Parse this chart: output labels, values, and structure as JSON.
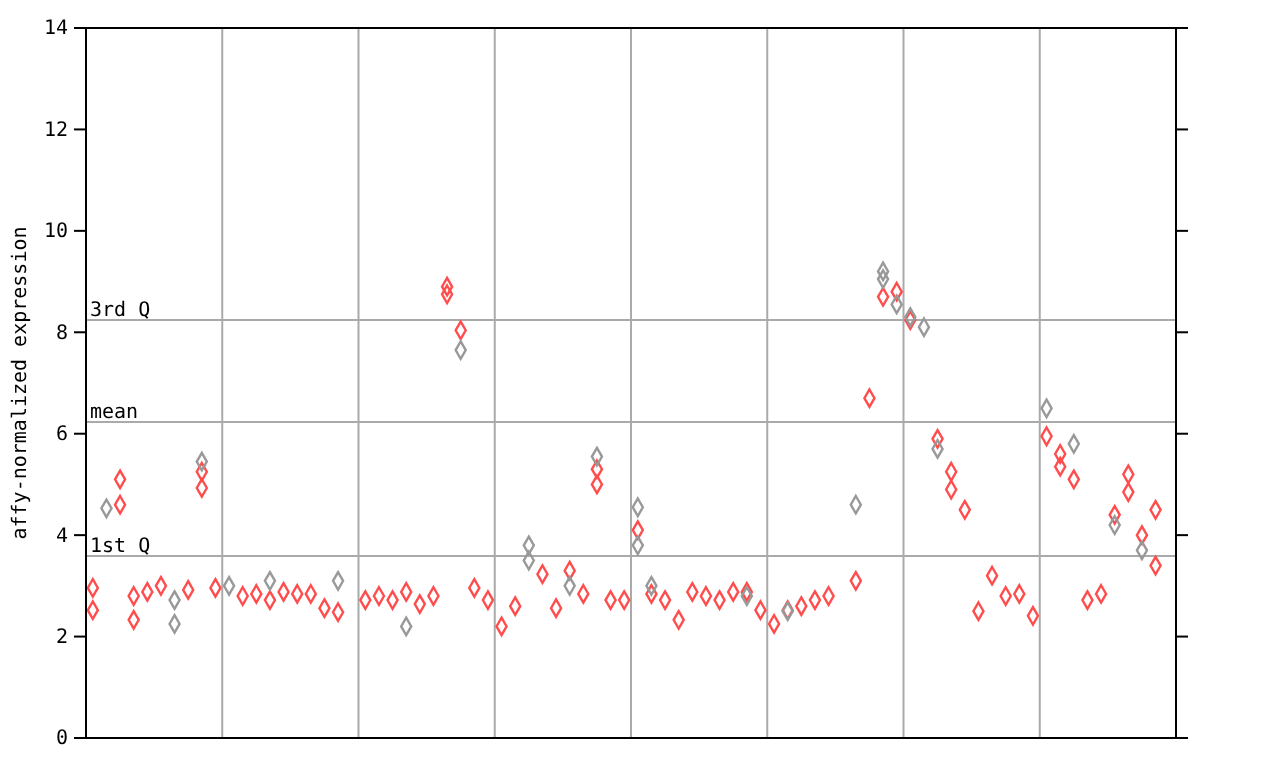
{
  "chart_data": {
    "type": "scatter",
    "ylabel": "affy-normalized expression",
    "categories": [
      null,
      null,
      null,
      null,
      null,
      null,
      null,
      null,
      null,
      null,
      null,
      null,
      null,
      null,
      null,
      null,
      null,
      null,
      null,
      null,
      null,
      null,
      null,
      null,
      null,
      null,
      null,
      null,
      null,
      null,
      null,
      null,
      null,
      null,
      null,
      null,
      null,
      null,
      null,
      null,
      null,
      null,
      null,
      null,
      null,
      null,
      null,
      null,
      null,
      null,
      null,
      null,
      null,
      null,
      null,
      null,
      null,
      null,
      null,
      null,
      null,
      null,
      null,
      null,
      null,
      null,
      null,
      null,
      null,
      null,
      null,
      null,
      null,
      null,
      null,
      null,
      null,
      null,
      null,
      null
    ],
    "ylim": [
      0,
      14
    ],
    "yticks": [
      0,
      2,
      4,
      6,
      8,
      10,
      12,
      14
    ],
    "grid": "x",
    "marker": "diamond",
    "ref_lines": [
      {
        "axis": "y",
        "value": 8.24,
        "label": "3rd Q",
        "color": "#aaaaaa"
      },
      {
        "axis": "y",
        "value": 6.23,
        "label": "mean",
        "color": "#aaaaaa"
      },
      {
        "axis": "y",
        "value": 3.59,
        "label": "1st Q",
        "color": "#aaaaaa"
      }
    ],
    "series": [
      {
        "color": "#ff4d4d",
        "values": [
          2.96,
          null,
          5.1,
          2.8,
          2.88,
          3.0,
          null,
          2.92,
          5.25,
          2.96,
          null,
          2.8,
          2.84,
          2.72,
          2.88,
          2.84,
          2.84,
          2.56,
          2.48,
          null,
          2.72,
          2.8,
          2.72,
          2.88,
          2.64,
          2.8,
          8.9,
          8.04,
          2.96,
          2.72,
          2.2,
          2.6,
          null,
          3.23,
          2.56,
          3.3,
          2.84,
          5.0,
          2.72,
          2.72,
          4.1,
          2.84,
          2.72,
          2.33,
          2.88,
          2.8,
          2.72,
          2.88,
          2.88,
          2.52,
          2.25,
          2.52,
          2.6,
          2.72,
          2.8,
          null,
          3.1,
          6.7,
          8.7,
          8.8,
          8.24,
          null,
          5.9,
          5.25,
          4.5,
          2.5,
          3.2,
          2.8,
          2.84,
          2.41,
          5.95,
          5.6,
          5.1,
          2.72,
          2.84,
          4.4,
          5.2,
          4.0,
          4.5,
          null
        ]
      },
      {
        "color": "#ff4d4d",
        "values": [
          2.52,
          null,
          4.6,
          2.33,
          null,
          null,
          null,
          null,
          4.93,
          null,
          null,
          null,
          null,
          null,
          null,
          null,
          null,
          null,
          null,
          null,
          null,
          null,
          null,
          null,
          null,
          null,
          8.75,
          null,
          null,
          null,
          null,
          null,
          null,
          null,
          null,
          null,
          null,
          5.3,
          null,
          null,
          null,
          null,
          null,
          null,
          null,
          null,
          null,
          null,
          null,
          null,
          null,
          null,
          null,
          null,
          null,
          null,
          null,
          null,
          null,
          null,
          null,
          null,
          null,
          4.9,
          null,
          null,
          null,
          null,
          null,
          null,
          null,
          5.35,
          null,
          null,
          null,
          null,
          4.85,
          null,
          3.4,
          null
        ]
      },
      {
        "color": "#999999",
        "values": [
          null,
          4.53,
          null,
          null,
          null,
          null,
          2.72,
          null,
          5.45,
          null,
          3.0,
          null,
          null,
          3.1,
          null,
          null,
          null,
          null,
          3.1,
          null,
          null,
          null,
          null,
          2.2,
          null,
          null,
          null,
          7.65,
          null,
          null,
          null,
          null,
          3.5,
          null,
          null,
          3.0,
          null,
          5.55,
          null,
          null,
          4.55,
          3.0,
          null,
          null,
          null,
          null,
          null,
          null,
          2.8,
          null,
          null,
          2.5,
          null,
          null,
          null,
          null,
          4.6,
          null,
          9.2,
          8.55,
          8.3,
          8.1,
          5.7,
          null,
          null,
          null,
          null,
          null,
          null,
          null,
          6.5,
          null,
          5.8,
          null,
          null,
          4.2,
          null,
          3.7,
          null,
          null
        ]
      },
      {
        "color": "#999999",
        "values": [
          null,
          null,
          null,
          null,
          null,
          null,
          2.25,
          null,
          null,
          null,
          null,
          null,
          null,
          null,
          null,
          null,
          null,
          null,
          null,
          null,
          null,
          null,
          null,
          null,
          null,
          null,
          null,
          null,
          null,
          null,
          null,
          null,
          3.8,
          null,
          null,
          null,
          null,
          null,
          null,
          null,
          3.8,
          null,
          null,
          null,
          null,
          null,
          null,
          null,
          null,
          null,
          null,
          null,
          null,
          null,
          null,
          null,
          null,
          null,
          9.05,
          null,
          null,
          null,
          null,
          null,
          null,
          null,
          null,
          null,
          null,
          null,
          null,
          null,
          null,
          null,
          null,
          null,
          null,
          null,
          null,
          null
        ]
      }
    ]
  }
}
